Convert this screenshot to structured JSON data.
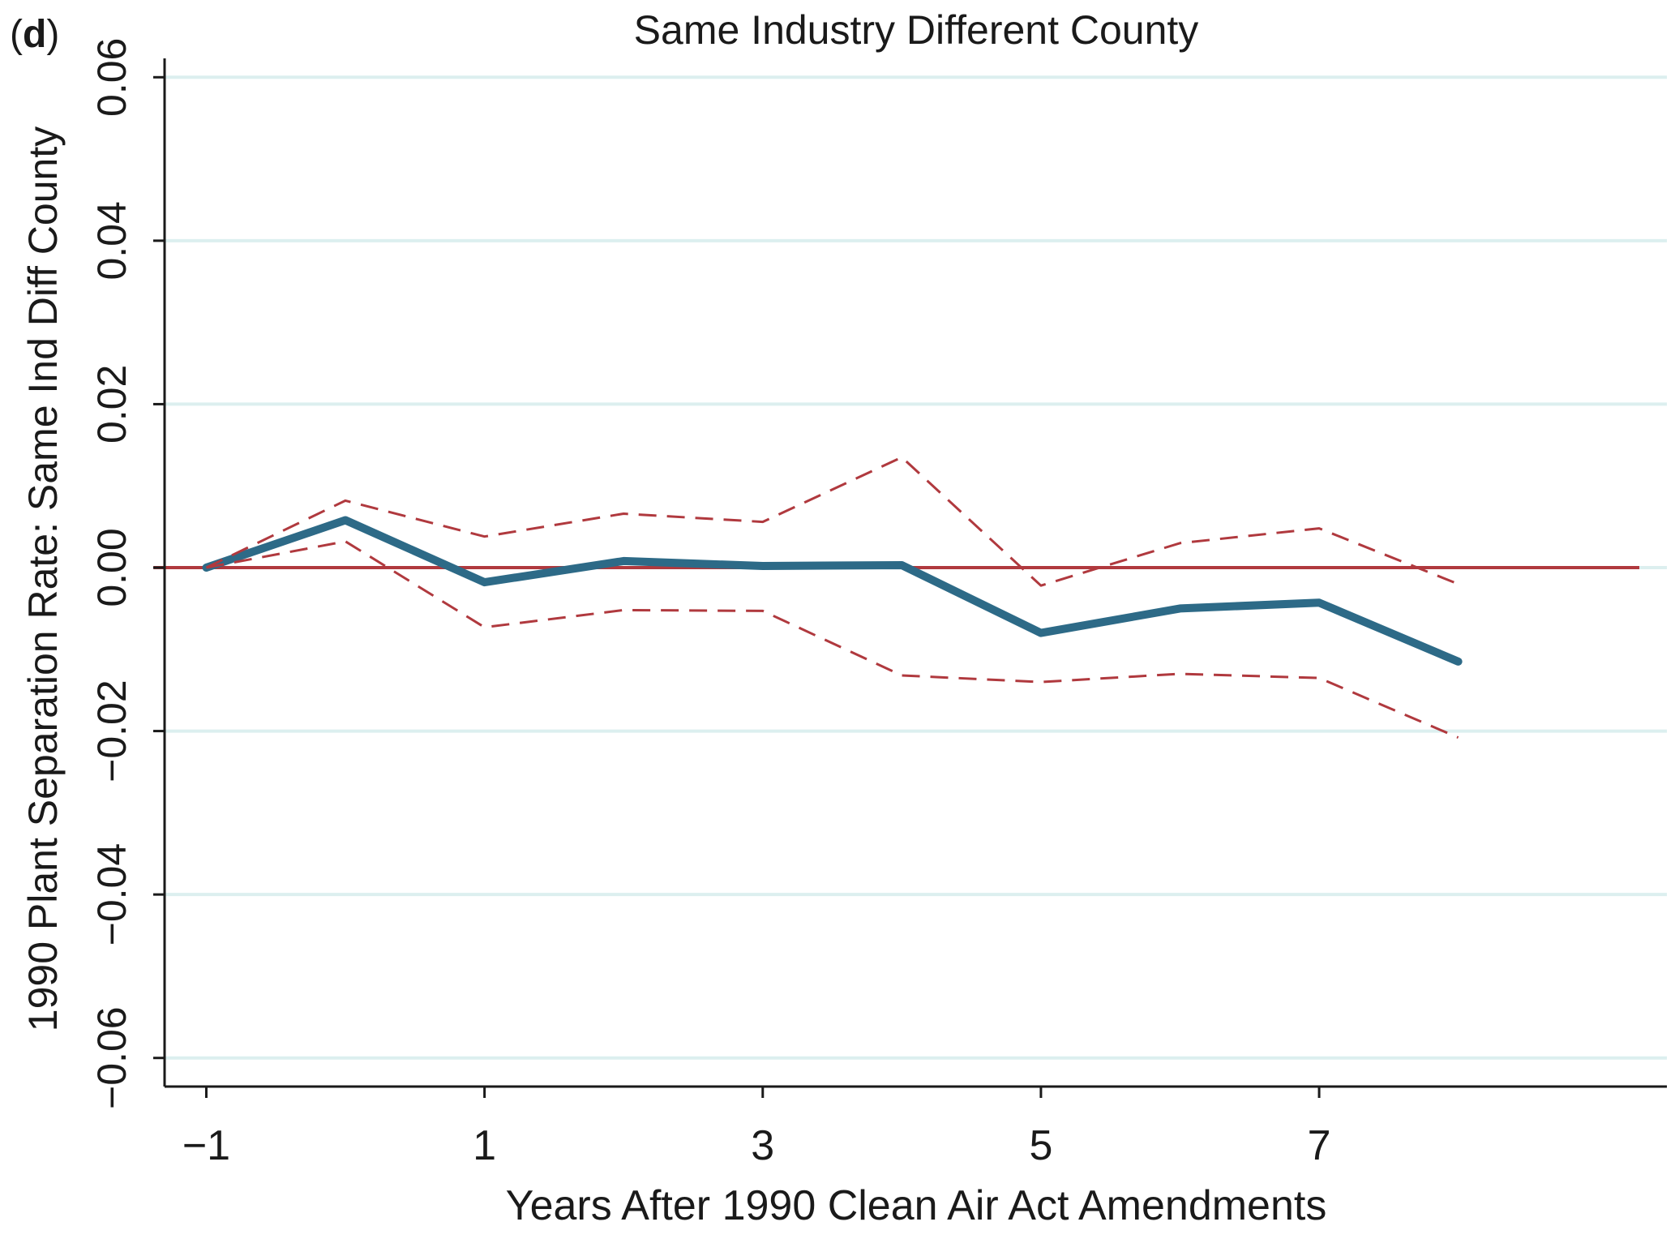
{
  "panel_label": {
    "open": "(",
    "letter": "d",
    "close": ")"
  },
  "chart_data": {
    "type": "line",
    "title": "Same Industry Different County",
    "xlabel": "Years After 1990 Clean Air Act Amendments",
    "ylabel": "1990 Plant Separation Rate: Same Ind Diff County",
    "xlim": [
      -1.3,
      9.5
    ],
    "ylim": [
      -0.0635,
      0.0635
    ],
    "x_ticks": [
      -1,
      1,
      3,
      5,
      7
    ],
    "x_tick_labels": [
      "−1",
      "1",
      "3",
      "5",
      "7"
    ],
    "y_ticks": [
      0.06,
      0.04,
      0.02,
      0.0,
      -0.02,
      -0.04,
      -0.06
    ],
    "y_tick_labels": [
      "0.06",
      "0.04",
      "0.02",
      "0.00",
      "−0.02",
      "−0.04",
      "−0.06"
    ],
    "grid": true,
    "reference_line": {
      "y": 0,
      "x_range": [
        -1.38,
        8.4
      ],
      "color": "#b0393e"
    },
    "colors": {
      "estimate": "#2d6a87",
      "ci": "#b0393e",
      "grid": "#dcefef",
      "axis": "#1a1a1a"
    },
    "x": [
      -1,
      0,
      1,
      2,
      3,
      4,
      5,
      6,
      7,
      8
    ],
    "series": [
      {
        "role": "estimate",
        "style": "solid",
        "values": [
          0.0,
          0.0058,
          -0.0018,
          0.0008,
          0.0002,
          0.0003,
          -0.008,
          -0.005,
          -0.0043,
          -0.0115
        ]
      },
      {
        "role": "upper-ci",
        "style": "dashed",
        "values": [
          0.0,
          0.0082,
          0.0038,
          0.0066,
          0.0056,
          0.0135,
          -0.0022,
          0.003,
          0.0048,
          -0.002
        ]
      },
      {
        "role": "lower-ci",
        "style": "dashed",
        "values": [
          0.0,
          0.0032,
          -0.0073,
          -0.0052,
          -0.0053,
          -0.0132,
          -0.014,
          -0.013,
          -0.0135,
          -0.0208
        ]
      }
    ]
  }
}
